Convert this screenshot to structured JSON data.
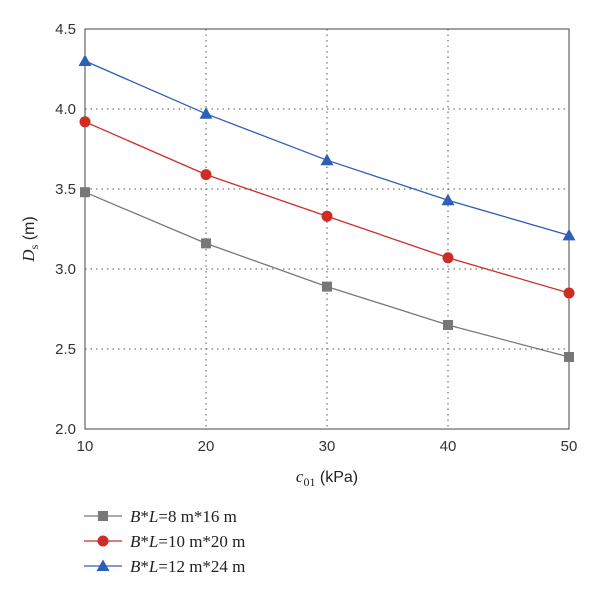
{
  "chart_data": {
    "type": "line",
    "x": [
      10,
      20,
      30,
      40,
      50
    ],
    "xlim": [
      10,
      50
    ],
    "ylim": [
      2.0,
      4.5
    ],
    "x_ticks": [
      10,
      20,
      30,
      40,
      50
    ],
    "y_ticks": [
      2.0,
      2.5,
      3.0,
      3.5,
      4.0,
      4.5
    ],
    "x_tick_labels": [
      "10",
      "20",
      "30",
      "40",
      "50"
    ],
    "y_tick_labels": [
      "2.0",
      "2.5",
      "3.0",
      "3.5",
      "4.0",
      "4.5"
    ],
    "xlabel": {
      "symbol": "c",
      "sub": "01",
      "unit": " (kPa)"
    },
    "ylabel": {
      "symbol": "D",
      "sub": "s",
      "unit": " (m)"
    },
    "grid": true,
    "legend_position": "bottom",
    "series": [
      {
        "name": "B*L=8 m*16 m",
        "legend": {
          "v1": "B",
          "op": "*",
          "v2": "L",
          "rest": "=8 m*16 m"
        },
        "color": "#777777",
        "marker": "square",
        "values": [
          3.48,
          3.16,
          2.89,
          2.65,
          2.45
        ]
      },
      {
        "name": "B*L=10 m*20 m",
        "legend": {
          "v1": "B",
          "op": "*",
          "v2": "L",
          "rest": "=10 m*20 m"
        },
        "color": "#cc2e27",
        "marker": "circle",
        "values": [
          3.92,
          3.59,
          3.33,
          3.07,
          2.85
        ]
      },
      {
        "name": "B*L=12 m*24 m",
        "legend": {
          "v1": "B",
          "op": "*",
          "v2": "L",
          "rest": "=12 m*24 m"
        },
        "color": "#2d5fb5",
        "marker": "triangle",
        "values": [
          4.3,
          3.97,
          3.68,
          3.43,
          3.21
        ]
      }
    ]
  }
}
